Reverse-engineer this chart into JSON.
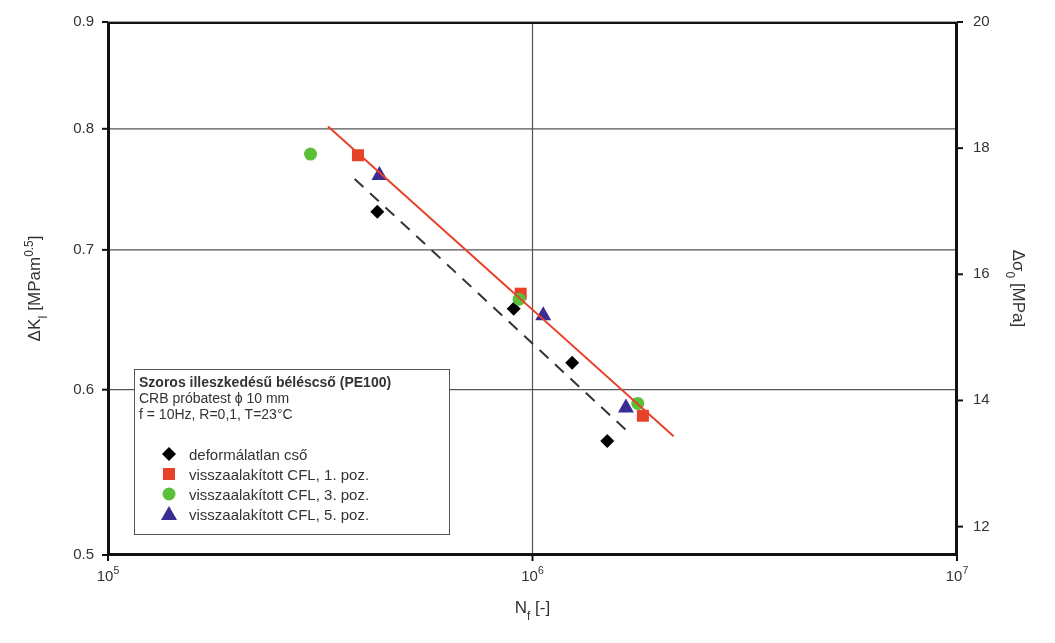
{
  "chart_data": {
    "type": "scatter",
    "xlabel": "N$_{f}$ [-]",
    "ylabel": "ΔK$_{I}$ [MPam$^{0.5}$]",
    "y2label": "Δσ$_{0}$ [MPa]",
    "legend_title": "Szoros illeszkedésű béléscső (PE100)",
    "annotations": [
      "CRB próbatest ϕ 10 mm",
      "f = 10Hz, R=0,1, T=23°C"
    ],
    "log": "xy",
    "grid": true,
    "legend": "bottom left",
    "xlim": [
      100000,
      10000000
    ],
    "xticks": [
      {
        "value": 100000,
        "label": "10$^{5}$"
      },
      {
        "value": 1000000,
        "label": "10$^{6}$"
      },
      {
        "value": 10000000,
        "label": "10$^{7}$"
      }
    ],
    "ylim": [
      0.5,
      0.9
    ],
    "yticks": [
      0.5,
      0.6,
      0.7,
      0.8,
      0.9
    ],
    "y2lim": [
      11.55,
      20
    ],
    "y2ticks": [
      12,
      14,
      16,
      18,
      20
    ],
    "series": [
      {
        "name": "deformálatlan cső",
        "color": "#000000",
        "marker": "diamond",
        "x": [
          431000,
          903000,
          1240000,
          1500000
        ],
        "values": [
          0.73,
          0.656,
          0.618,
          0.567
        ]
      },
      {
        "name": "visszaalakított CFL, 1. poz.",
        "color": "#e8412a",
        "marker": "square",
        "x": [
          388000,
          938000,
          1820000
        ],
        "values": [
          0.777,
          0.667,
          0.583
        ]
      },
      {
        "name": "visszaalakított CFL, 3. poz.",
        "color": "#5bbf3a",
        "marker": "circle",
        "x": [
          300000,
          930000,
          1770000
        ],
        "values": [
          0.778,
          0.663,
          0.591
        ]
      },
      {
        "name": "visszaalakított CFL, 5. poz.",
        "color": "#3a2d93",
        "marker": "triangle",
        "x": [
          436000,
          1060000,
          1660000
        ],
        "values": [
          0.761,
          0.652,
          0.589
        ]
      },
      {
        "type": "line",
        "color": "#e8412a",
        "marker": "none",
        "line_style": "solid",
        "x": [
          330000,
          2150000
        ],
        "values": [
          0.802,
          0.57
        ]
      },
      {
        "type": "line",
        "color": "#333333",
        "marker": "none",
        "line_style": "dashed",
        "x": [
          381000,
          1690000
        ],
        "values": [
          0.757,
          0.572
        ]
      }
    ]
  }
}
